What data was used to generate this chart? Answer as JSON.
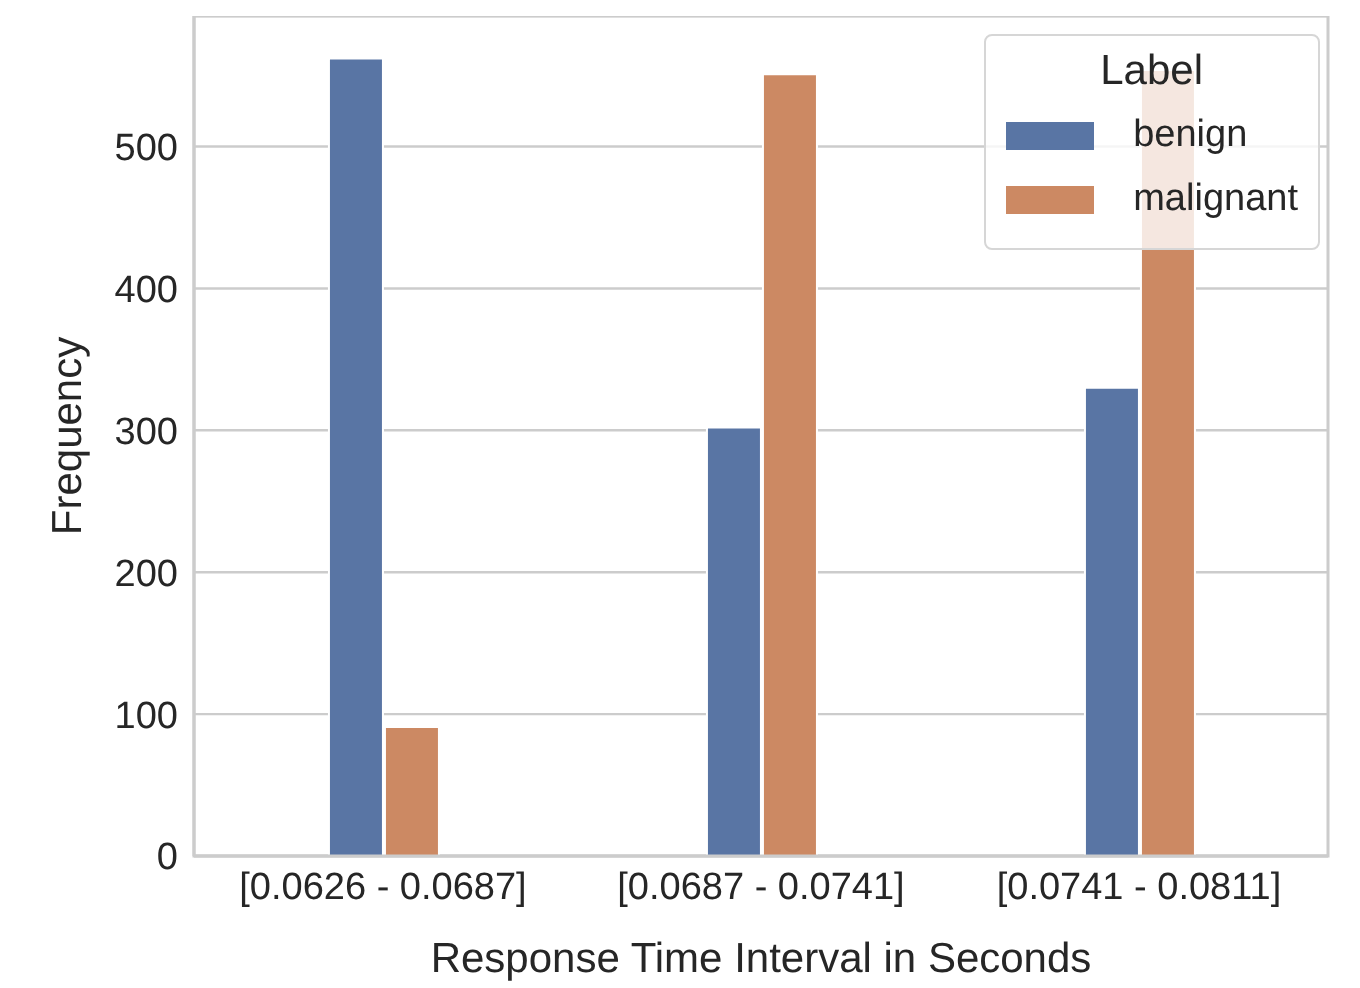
{
  "chart_data": {
    "type": "bar",
    "xlabel": "Response Time Interval in Seconds",
    "ylabel": "Frequency",
    "legend_title": "Label",
    "categories": [
      "[0.0626 - 0.0687]",
      "[0.0687 - 0.0741]",
      "[0.0741 - 0.0811]"
    ],
    "series": [
      {
        "name": "benign",
        "color": "#5975a4",
        "values": [
          562,
          302,
          330
        ]
      },
      {
        "name": "malignant",
        "color": "#cc8963",
        "values": [
          91,
          551,
          554
        ]
      }
    ],
    "ylim": [
      0,
      592
    ],
    "yticks": [
      0,
      100,
      200,
      300,
      400,
      500
    ],
    "grid": "y",
    "legend": "top right"
  }
}
